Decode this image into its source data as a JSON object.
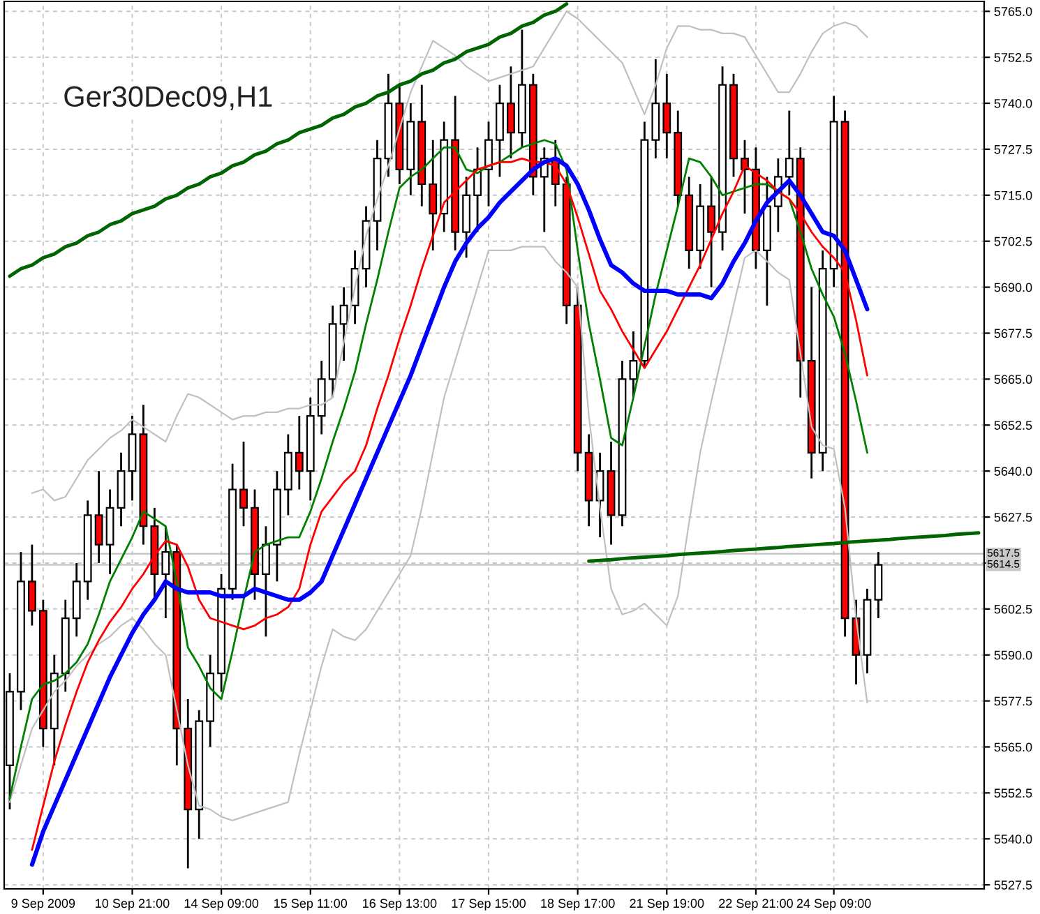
{
  "chart_data": {
    "type": "candlestick",
    "title": "Ger30Dec09,H1",
    "categories": [
      null,
      null,
      null,
      "9 Sep 2009",
      null,
      null,
      null,
      null,
      null,
      null,
      null,
      "10 Sep 21:00",
      null,
      null,
      null,
      null,
      null,
      null,
      null,
      "14 Sep 09:00",
      null,
      null,
      null,
      null,
      null,
      null,
      null,
      "15 Sep 11:00",
      null,
      null,
      null,
      null,
      null,
      null,
      null,
      "16 Sep 13:00",
      null,
      null,
      null,
      null,
      null,
      null,
      null,
      "17 Sep 15:00",
      null,
      null,
      null,
      null,
      null,
      null,
      null,
      "18 Sep 17:00",
      null,
      null,
      null,
      null,
      null,
      null,
      null,
      "21 Sep 19:00",
      null,
      null,
      null,
      null,
      null,
      null,
      null,
      "22 Sep 21:00",
      null,
      null,
      null,
      null,
      null,
      null,
      "24 Sep 09:00",
      null,
      null,
      null,
      null,
      null,
      null,
      null,
      null,
      null,
      null,
      null,
      null,
      null
    ],
    "colors": [
      "#ffffff",
      "#ffffff",
      "#ff0000",
      "#ff0000",
      "#ffffff",
      "#ffffff",
      "#ffffff",
      "#ffffff",
      "#ff0000",
      "#ffffff",
      "#ffffff",
      "#ffffff",
      "#ff0000",
      "#ff0000",
      "#ffffff",
      "#ff0000",
      "#ff0000",
      "#ffffff",
      "#ffffff",
      "#ffffff",
      "#ffffff",
      "#ff0000",
      "#ff0000",
      "#ffffff",
      "#ffffff",
      "#ffffff",
      "#ff0000",
      "#ffffff",
      "#ffffff",
      "#ffffff",
      "#ffffff",
      "#ffffff",
      "#ffffff",
      "#ffffff",
      "#ffffff",
      "#ff0000",
      "#ffffff",
      "#ff0000",
      "#ff0000",
      "#ffffff",
      "#ff0000",
      "#ffffff",
      "#ffffff",
      "#ffffff",
      "#ffffff",
      "#ff0000",
      "#ffffff",
      "#ff0000",
      "#ffffff",
      "#ff0000",
      "#ff0000",
      "#ff0000",
      "#ff0000",
      "#ffffff",
      "#ff0000",
      "#ffffff",
      "#ffffff",
      "#ffffff",
      "#ffffff",
      "#ff0000",
      "#ff0000",
      "#ff0000",
      "#ffffff",
      "#ff0000",
      "#ffffff",
      "#ff0000",
      "#ff0000",
      "#ff0000",
      "#ffffff",
      "#ffffff",
      "#ffffff",
      "#ff0000",
      "#ff0000",
      "#ffffff",
      "#ffffff",
      "#ff0000",
      "#ff0000",
      "#ffffff",
      "#ffffff",
      null,
      null,
      null,
      null,
      null,
      null,
      null,
      null,
      null
    ],
    "ohlc": [
      [
        5560,
        5585,
        5548,
        5580
      ],
      [
        5580,
        5618,
        5575,
        5610
      ],
      [
        5610,
        5620,
        5598,
        5602
      ],
      [
        5602,
        5605,
        5565,
        5570
      ],
      [
        5570,
        5590,
        5560,
        5585
      ],
      [
        5585,
        5605,
        5580,
        5600
      ],
      [
        5600,
        5615,
        5595,
        5610
      ],
      [
        5610,
        5632,
        5605,
        5628
      ],
      [
        5628,
        5640,
        5615,
        5620
      ],
      [
        5620,
        5635,
        5612,
        5630
      ],
      [
        5630,
        5645,
        5625,
        5640
      ],
      [
        5640,
        5655,
        5632,
        5650
      ],
      [
        5650,
        5658,
        5620,
        5625
      ],
      [
        5625,
        5630,
        5605,
        5612
      ],
      [
        5612,
        5625,
        5600,
        5618
      ],
      [
        5618,
        5620,
        5560,
        5570
      ],
      [
        5570,
        5578,
        5532,
        5548
      ],
      [
        5548,
        5575,
        5540,
        5572
      ],
      [
        5572,
        5590,
        5565,
        5585
      ],
      [
        5585,
        5612,
        5580,
        5608
      ],
      [
        5608,
        5642,
        5605,
        5635
      ],
      [
        5635,
        5648,
        5625,
        5630
      ],
      [
        5630,
        5635,
        5605,
        5612
      ],
      [
        5612,
        5625,
        5595,
        5620
      ],
      [
        5620,
        5640,
        5610,
        5635
      ],
      [
        5635,
        5650,
        5628,
        5645
      ],
      [
        5645,
        5655,
        5635,
        5640
      ],
      [
        5640,
        5660,
        5632,
        5655
      ],
      [
        5655,
        5670,
        5650,
        5665
      ],
      [
        5665,
        5685,
        5660,
        5680
      ],
      [
        5680,
        5690,
        5670,
        5685
      ],
      [
        5685,
        5700,
        5680,
        5695
      ],
      [
        5695,
        5712,
        5690,
        5708
      ],
      [
        5708,
        5730,
        5700,
        5725
      ],
      [
        5725,
        5748,
        5720,
        5740
      ],
      [
        5740,
        5745,
        5718,
        5722
      ],
      [
        5722,
        5740,
        5715,
        5735
      ],
      [
        5735,
        5745,
        5712,
        5718
      ],
      [
        5718,
        5730,
        5700,
        5710
      ],
      [
        5710,
        5735,
        5705,
        5730
      ],
      [
        5730,
        5742,
        5700,
        5705
      ],
      [
        5705,
        5720,
        5698,
        5715
      ],
      [
        5715,
        5728,
        5705,
        5722
      ],
      [
        5722,
        5735,
        5712,
        5730
      ],
      [
        5730,
        5745,
        5720,
        5740
      ],
      [
        5740,
        5750,
        5725,
        5732
      ],
      [
        5732,
        5760,
        5728,
        5745
      ],
      [
        5745,
        5748,
        5715,
        5720
      ],
      [
        5720,
        5728,
        5705,
        5725
      ],
      [
        5725,
        5730,
        5712,
        5718
      ],
      [
        5718,
        5720,
        5680,
        5685
      ],
      [
        5685,
        5690,
        5640,
        5645
      ],
      [
        5645,
        5650,
        5625,
        5632
      ],
      [
        5632,
        5645,
        5622,
        5640
      ],
      [
        5640,
        5648,
        5620,
        5628
      ],
      [
        5628,
        5670,
        5625,
        5665
      ],
      [
        5665,
        5678,
        5660,
        5670
      ],
      [
        5670,
        5735,
        5668,
        5730
      ],
      [
        5730,
        5752,
        5725,
        5740
      ],
      [
        5740,
        5748,
        5725,
        5732
      ],
      [
        5732,
        5738,
        5712,
        5715
      ],
      [
        5715,
        5720,
        5695,
        5700
      ],
      [
        5700,
        5718,
        5695,
        5712
      ],
      [
        5712,
        5720,
        5690,
        5705
      ],
      [
        5705,
        5750,
        5700,
        5745
      ],
      [
        5745,
        5748,
        5720,
        5725
      ],
      [
        5725,
        5730,
        5710,
        5722
      ],
      [
        5722,
        5728,
        5695,
        5700
      ],
      [
        5700,
        5720,
        5685,
        5712
      ],
      [
        5712,
        5725,
        5705,
        5720
      ],
      [
        5720,
        5738,
        5715,
        5725
      ],
      [
        5725,
        5728,
        5660,
        5670
      ],
      [
        5670,
        5690,
        5638,
        5645
      ],
      [
        5645,
        5700,
        5640,
        5695
      ],
      [
        5695,
        5742,
        5690,
        5735
      ],
      [
        5735,
        5738,
        5595,
        5600
      ],
      [
        5600,
        5605,
        5582,
        5590
      ],
      [
        5590,
        5608,
        5585,
        5605
      ],
      [
        5605,
        5618,
        5600,
        5614.5
      ],
      null,
      null,
      null,
      null,
      null,
      null,
      null,
      null,
      null
    ],
    "series": [
      {
        "type": "line",
        "color": "#c0c0c0",
        "values": [
          null,
          null,
          5634,
          5635,
          5632,
          5633,
          5638,
          5643,
          5646,
          5649,
          5651,
          5654,
          5652,
          5650,
          5648,
          5655,
          5661,
          5660,
          5658,
          5656,
          5654,
          5655,
          5655,
          5656,
          5656,
          5657,
          5657,
          5658,
          5658,
          5660,
          5675,
          5690,
          5704,
          5714,
          5723,
          5733,
          5743,
          5750,
          5757,
          5755,
          5753,
          5750,
          5748,
          5746,
          5747,
          5748,
          5749,
          5750,
          5755,
          5760,
          5765,
          5763,
          5760,
          5757,
          5754,
          5751,
          5744,
          5737,
          5745,
          5755,
          5761,
          5761,
          5760,
          5760,
          5759,
          5759,
          5758,
          5753,
          5748,
          5743,
          5743,
          5748,
          5754,
          5759,
          5761,
          5762,
          5761,
          5758,
          null,
          null,
          null,
          null,
          null,
          null,
          null,
          null,
          null,
          null
        ]
      },
      {
        "type": "line",
        "color": "#c0c0c0",
        "values": [
          5550,
          5560,
          5570,
          5575,
          5580,
          5583,
          5587,
          5590,
          5593,
          5595,
          5598,
          5600,
          5597,
          5593,
          5590,
          5575,
          5560,
          5549,
          5548,
          5546,
          5545,
          5546,
          5547,
          5548,
          5549,
          5550,
          5563,
          5575,
          5587,
          5597,
          5595,
          5594,
          5597,
          5602,
          5607,
          5612,
          5617,
          5630,
          5645,
          5660,
          5670,
          5680,
          5690,
          5700,
          5700,
          5700,
          5701,
          5701,
          5701,
          5697,
          5694,
          5690,
          5655,
          5630,
          5608,
          5601,
          5602,
          5604,
          5601,
          5598,
          5606,
          5626,
          5645,
          5659,
          5672,
          5685,
          5698,
          5700,
          5697,
          5694,
          5692,
          5672,
          5652,
          5647,
          5646,
          5630,
          5600,
          5577,
          null,
          null,
          null,
          null,
          null,
          null,
          null,
          null,
          null,
          null
        ]
      },
      {
        "type": "line",
        "color": "#008000",
        "values": [
          5551,
          5565,
          5578,
          5582,
          5583,
          5585,
          5588,
          5593,
          5601,
          5610,
          5616,
          5622,
          5629,
          5627,
          5625,
          5610,
          5592,
          5587,
          5581,
          5578,
          5591,
          5605,
          5618,
          5620,
          5621,
          5622,
          5622,
          5629,
          5638,
          5648,
          5657,
          5667,
          5680,
          5692,
          5705,
          5717,
          5720,
          5722,
          5725,
          5728,
          5728,
          5722,
          5721,
          5723,
          5724,
          5726,
          5728,
          5729,
          5730,
          5729,
          5722,
          5700,
          5680,
          5665,
          5649,
          5647,
          5660,
          5674,
          5688,
          5700,
          5712,
          5725,
          5724,
          5720,
          5715,
          5716,
          5717,
          5718,
          5718,
          5716,
          5714,
          5705,
          5695,
          5688,
          5682,
          5672,
          5659,
          5645,
          null,
          null,
          null,
          null,
          null,
          null,
          null,
          null,
          null,
          null
        ]
      },
      {
        "type": "line",
        "color": "#ff0000",
        "values": [
          null,
          null,
          5537,
          5549,
          5561,
          5571,
          5580,
          5588,
          5594,
          5599,
          5603,
          5608,
          5612,
          5617,
          5621,
          5620,
          5614,
          5605,
          5600,
          5599,
          5598,
          5597,
          5598,
          5600,
          5601,
          5603,
          5608,
          5620,
          5629,
          5633,
          5637,
          5640,
          5647,
          5657,
          5666,
          5676,
          5685,
          5695,
          5704,
          5713,
          5716,
          5719,
          5722,
          5723,
          5724,
          5724,
          5725,
          5724,
          5724,
          5723,
          5718,
          5709,
          5699,
          5689,
          5684,
          5678,
          5673,
          5668,
          5673,
          5678,
          5684,
          5690,
          5696,
          5703,
          5710,
          5716,
          5723,
          5721,
          5719,
          5716,
          5714,
          5710,
          5705,
          5701,
          5698,
          5694,
          5681,
          5666,
          null,
          null,
          null,
          null,
          null,
          null,
          null,
          null,
          null,
          null
        ]
      },
      {
        "type": "line",
        "color": "#0000ff",
        "values": [
          null,
          null,
          5533,
          5542,
          5549,
          5556,
          5563,
          5570,
          5577,
          5584,
          5590,
          5596,
          5601,
          5605,
          5610,
          5608,
          5607,
          5607,
          5607,
          5606,
          5606,
          5606,
          5608,
          5607,
          5606,
          5605,
          5605,
          5607,
          5610,
          5617,
          5624,
          5631,
          5638,
          5645,
          5652,
          5659,
          5666,
          5674,
          5682,
          5690,
          5697,
          5702,
          5706,
          5709,
          5713,
          5716,
          5719,
          5722,
          5724,
          5725,
          5723,
          5718,
          5711,
          5703,
          5696,
          5694,
          5691,
          5689,
          5689,
          5689,
          5688,
          5688,
          5688,
          5687,
          5691,
          5697,
          5702,
          5708,
          5713,
          5716,
          5719,
          5715,
          5710,
          5705,
          5704,
          5700,
          5692,
          5684,
          null,
          null,
          null,
          null,
          null,
          null,
          null,
          null,
          null,
          null
        ]
      },
      {
        "type": "line",
        "color": "#006400",
        "values": [
          5693,
          5695,
          5696,
          5698,
          5699,
          5701,
          5702,
          5704,
          5705,
          5707,
          5708,
          5710,
          5711,
          5712,
          5714,
          5715,
          5717,
          5718,
          5720,
          5721,
          5723,
          5724,
          5726,
          5727,
          5729,
          5730,
          5732,
          5733,
          5734,
          5736,
          5737,
          5739,
          5740,
          5742,
          5743,
          5745,
          5746,
          5748,
          5749,
          5751,
          5752,
          5754,
          5755,
          5756,
          5758,
          5759,
          5761,
          5762,
          5764,
          5765,
          5767,
          null,
          null,
          null,
          null,
          null,
          null,
          null,
          null,
          null,
          null,
          null,
          null,
          null,
          null,
          null,
          null,
          null,
          null,
          null,
          null,
          null,
          null,
          null,
          null,
          null,
          null,
          null,
          null,
          null,
          null,
          null,
          null,
          null,
          null,
          null,
          null,
          null
        ]
      },
      {
        "type": "line",
        "color": "#006400",
        "values": [
          null,
          null,
          null,
          null,
          null,
          null,
          null,
          null,
          null,
          null,
          null,
          null,
          null,
          null,
          null,
          null,
          null,
          null,
          null,
          null,
          null,
          null,
          null,
          null,
          null,
          null,
          null,
          null,
          null,
          null,
          null,
          null,
          null,
          null,
          null,
          null,
          null,
          null,
          null,
          null,
          null,
          null,
          null,
          null,
          null,
          null,
          null,
          null,
          null,
          null,
          null,
          null,
          5615.5,
          5615.7,
          5615.9,
          5616.2,
          5616.4,
          5616.6,
          5616.8,
          5617.0,
          5617.3,
          5617.5,
          5617.7,
          5617.9,
          5618.1,
          5618.4,
          5618.6,
          5618.8,
          5619.0,
          5619.2,
          5619.5,
          5619.7,
          5619.9,
          5620.1,
          5620.3,
          5620.6,
          5620.8,
          5621.0,
          5621.2,
          5621.4,
          5621.7,
          5621.9,
          5622.1,
          5622.3,
          5622.5,
          5622.8,
          5623.0,
          5623.2
        ]
      }
    ],
    "ylim": [
      5526.4,
      5767.7
    ],
    "yticks": [
      {
        "value": 5527.5,
        "label": "5527.5"
      },
      {
        "value": 5540,
        "label": "5540.0"
      },
      {
        "value": 5552.5,
        "label": "5552.5"
      },
      {
        "value": 5565,
        "label": "5565.0"
      },
      {
        "value": 5577.5,
        "label": "5577.5"
      },
      {
        "value": 5590,
        "label": "5590.0"
      },
      {
        "value": 5602.5,
        "label": "5602.5"
      },
      {
        "value": 5615,
        "label": null
      },
      {
        "value": 5627.5,
        "label": "5627.5"
      },
      {
        "value": 5640,
        "label": "5640.0"
      },
      {
        "value": 5652.5,
        "label": "5652.5"
      },
      {
        "value": 5665,
        "label": "5665.0"
      },
      {
        "value": 5677.5,
        "label": "5677.5"
      },
      {
        "value": 5690,
        "label": "5690.0"
      },
      {
        "value": 5702.5,
        "label": "5702.5"
      },
      {
        "value": 5715,
        "label": "5715.0"
      },
      {
        "value": 5727.5,
        "label": "5727.5"
      },
      {
        "value": 5740,
        "label": "5740.0"
      },
      {
        "value": 5752.5,
        "label": "5752.5"
      },
      {
        "value": 5765,
        "label": "5765.0"
      }
    ],
    "ref_lines": [
      {
        "axis": "y",
        "value": 5617.5,
        "label": "5617.5",
        "color": "#c8c8c8"
      },
      {
        "axis": "y",
        "value": 5614.5,
        "label": "5614.5",
        "color": "#c8c8c8"
      }
    ],
    "grid": true
  }
}
